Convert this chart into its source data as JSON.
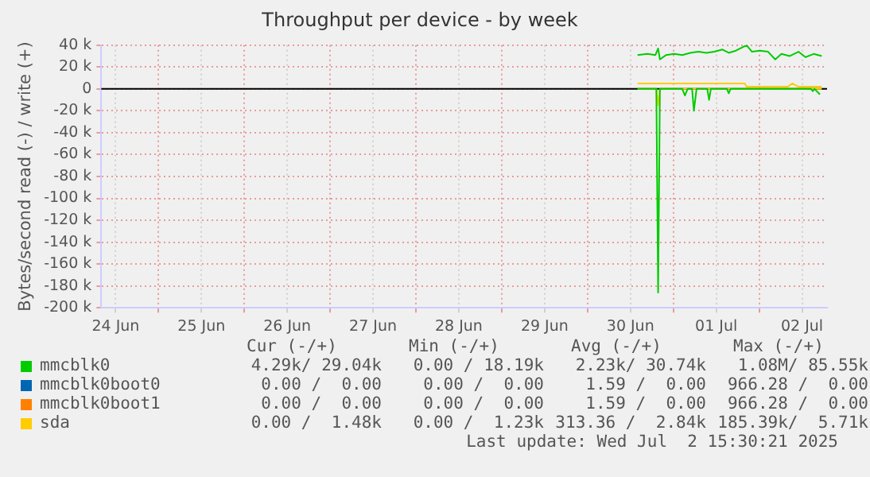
{
  "chart_data": {
    "type": "line",
    "title": "Throughput per device - by week",
    "ylabel": "Bytes/second read (-) / write (+)",
    "xlim": [
      "2025-06-24T08:00",
      "2025-07-02T19:00"
    ],
    "xticks": [
      {
        "value": "2025-06-24T12:00",
        "label": "24 Jun"
      },
      {
        "value": "2025-06-25T00:00",
        "label": null
      },
      {
        "value": "2025-06-25T12:00",
        "label": "25 Jun"
      },
      {
        "value": "2025-06-26T00:00",
        "label": null
      },
      {
        "value": "2025-06-26T12:00",
        "label": "26 Jun"
      },
      {
        "value": "2025-06-27T00:00",
        "label": null
      },
      {
        "value": "2025-06-27T12:00",
        "label": "27 Jun"
      },
      {
        "value": "2025-06-28T00:00",
        "label": null
      },
      {
        "value": "2025-06-28T12:00",
        "label": "28 Jun"
      },
      {
        "value": "2025-06-29T00:00",
        "label": null
      },
      {
        "value": "2025-06-29T12:00",
        "label": "29 Jun"
      },
      {
        "value": "2025-06-30T00:00",
        "label": null
      },
      {
        "value": "2025-06-30T12:00",
        "label": "30 Jun"
      },
      {
        "value": "2025-07-01T00:00",
        "label": null
      },
      {
        "value": "2025-07-01T12:00",
        "label": "01 Jul"
      },
      {
        "value": "2025-07-02T00:00",
        "label": null
      },
      {
        "value": "2025-07-02T12:00",
        "label": "02 Jul"
      }
    ],
    "ylim": [
      -200000,
      40000
    ],
    "yticks": [
      {
        "value": -200000,
        "label": "-200 k"
      },
      {
        "value": -180000,
        "label": "-180 k"
      },
      {
        "value": -160000,
        "label": "-160 k"
      },
      {
        "value": -140000,
        "label": "-140 k"
      },
      {
        "value": -120000,
        "label": "-120 k"
      },
      {
        "value": -100000,
        "label": "-100 k"
      },
      {
        "value": -80000,
        "label": "-80 k"
      },
      {
        "value": -60000,
        "label": "-60 k"
      },
      {
        "value": -40000,
        "label": "-40 k"
      },
      {
        "value": -20000,
        "label": "-20 k"
      },
      0,
      {
        "value": 20000,
        "label": "20 k"
      },
      {
        "value": 40000,
        "label": "40 k"
      }
    ],
    "ref_lines": [
      {
        "axis": "y",
        "value": 0,
        "color": "#000000"
      }
    ],
    "grid": true,
    "legend": "bottom",
    "marker": "none",
    "line_style": "solid",
    "series": [
      {
        "name": "mmcblk0",
        "color": "#00cc00",
        "x": [
          "2025-06-30T14:00",
          "2025-06-30T16:45",
          "2025-06-30T19:00",
          "2025-06-30T19:45",
          "2025-06-30T20:15",
          "2025-06-30T22:00",
          "2025-07-01T00:15",
          "2025-07-01T02:30",
          "2025-07-01T04:45",
          "2025-07-01T07:00",
          "2025-07-01T09:15",
          "2025-07-01T11:30",
          "2025-07-01T13:45",
          "2025-07-01T15:30",
          "2025-07-01T17:30",
          "2025-07-01T20:30",
          "2025-07-01T22:00",
          "2025-07-02T00:15",
          "2025-07-02T02:30",
          "2025-07-02T04:30",
          "2025-07-02T06:15",
          "2025-07-02T08:30",
          "2025-07-02T11:00",
          "2025-07-02T13:00",
          "2025-07-02T15:15",
          "2025-07-02T17:30"
        ],
        "values": [
          31000,
          32000,
          31000,
          37000,
          27000,
          31000,
          32000,
          31000,
          33000,
          34000,
          33000,
          34000,
          36000,
          33000,
          35000,
          40000,
          34000,
          35000,
          34000,
          27000,
          32000,
          30000,
          34000,
          29000,
          32000,
          30000
        ]
      },
      {
        "color": "#00cc00",
        "x": [
          "2025-06-30T14:00",
          "2025-06-30T19:15",
          "2025-06-30T19:45",
          "2025-06-30T20:15",
          "2025-07-01T02:30",
          "2025-07-01T03:15",
          "2025-07-01T04:00",
          "2025-07-01T05:15",
          "2025-07-01T05:45",
          "2025-07-01T06:30",
          "2025-07-01T09:30",
          "2025-07-01T10:00",
          "2025-07-01T10:30",
          "2025-07-01T15:00",
          "2025-07-01T15:30",
          "2025-07-01T16:00",
          "2025-07-02T14:30",
          "2025-07-02T15:00",
          "2025-07-02T15:30",
          "2025-07-02T17:00"
        ],
        "values": [
          0,
          0,
          -186000,
          0,
          0,
          -6000,
          0,
          0,
          -20000,
          0,
          0,
          -10000,
          0,
          0,
          -4000,
          0,
          0,
          -2000,
          0,
          -5000
        ]
      },
      {
        "name": "mmcblk0boot0",
        "color": "#0066b3"
      },
      {
        "name": "mmcblk0boot1",
        "color": "#ff8000"
      },
      {
        "name": "sda",
        "color": "#ffcc00",
        "x": [
          "2025-06-30T14:00",
          "2025-07-01T20:00",
          "2025-07-01T20:30",
          "2025-07-02T08:00",
          "2025-07-02T09:15",
          "2025-07-02T11:00",
          "2025-07-02T17:30"
        ],
        "values": [
          5000,
          5000,
          2000,
          2000,
          5000,
          2000,
          2000
        ]
      },
      {
        "color": "#ffcc00",
        "x": [
          "2025-06-30T14:00",
          "2025-06-30T19:15",
          "2025-06-30T19:45",
          "2025-06-30T20:15",
          "2025-07-02T17:30"
        ],
        "values": [
          0,
          0,
          -15000,
          0,
          0
        ]
      }
    ],
    "annotations": [
      "Cur (-/+)",
      "Min (-/+)",
      "Avg (-/+)",
      "Max (-/+)",
      "4.29k/ 29.04k",
      "0.00 / 18.19k",
      "2.23k/ 30.74k",
      "1.08M/ 85.55k",
      "0.00 /  0.00",
      "0.00 /  0.00",
      "1.59 /  0.00",
      "966.28 /  0.00",
      "0.00 /  0.00",
      "0.00 /  0.00",
      "1.59 /  0.00",
      "966.28 /  0.00",
      "0.00 /  1.48k",
      "0.00 /  1.23k",
      "313.36 /  2.84k",
      "185.39k/  5.71k",
      "Last update: Wed Jul  2 15:30:21 2025"
    ]
  }
}
